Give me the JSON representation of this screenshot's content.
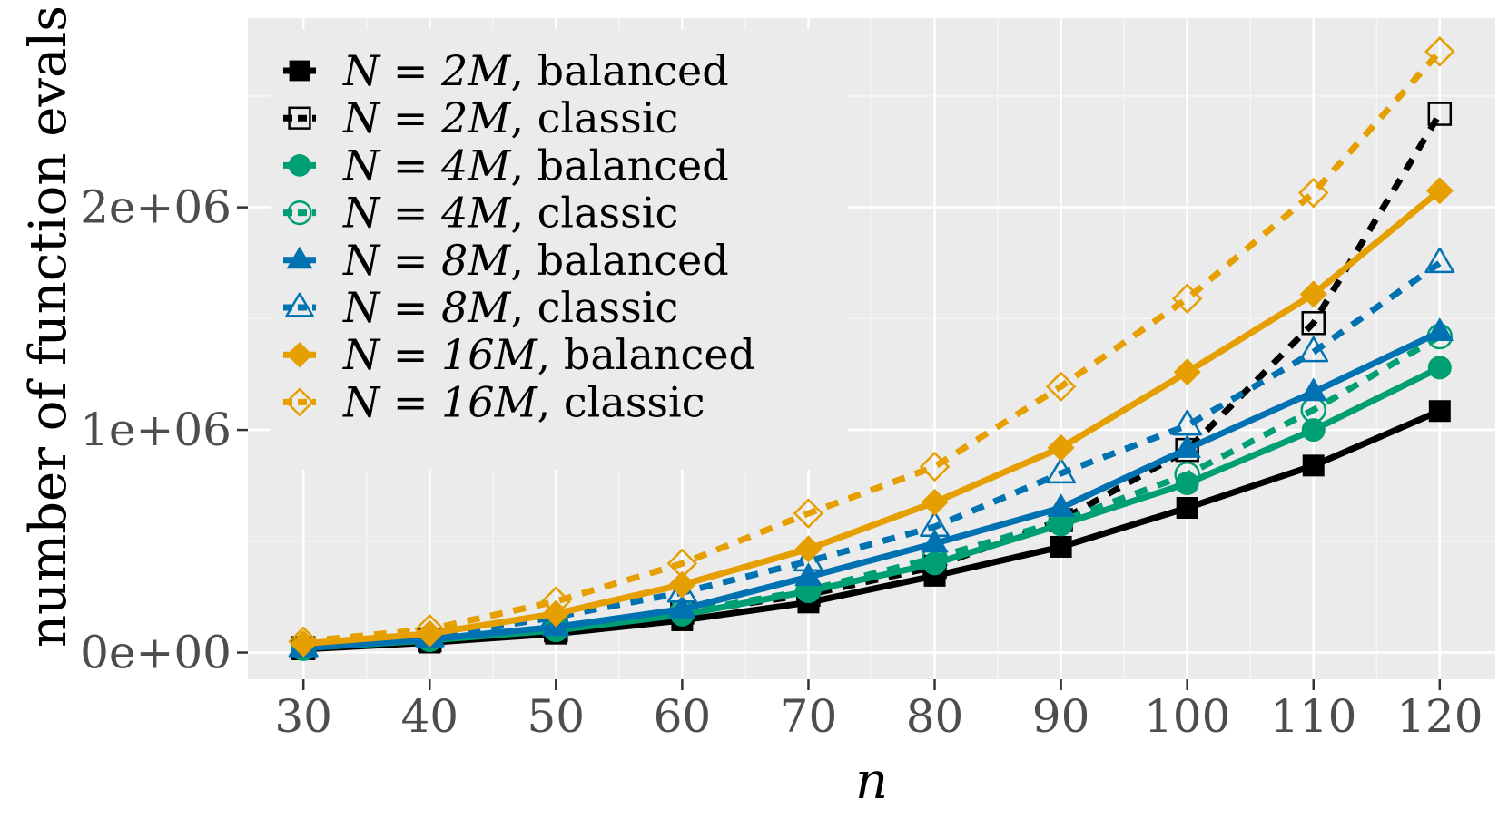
{
  "chart_data": {
    "type": "line",
    "title": "",
    "xlabel": "n",
    "ylabel": "number of function evals",
    "xlim": [
      25.6,
      124.4
    ],
    "ylim": [
      -120000,
      2850000
    ],
    "x": [
      30,
      40,
      50,
      60,
      70,
      80,
      90,
      100,
      110,
      120
    ],
    "xticks": [
      30,
      40,
      50,
      60,
      70,
      80,
      90,
      100,
      110,
      120
    ],
    "xtick_labels": [
      "30",
      "40",
      "50",
      "60",
      "70",
      "80",
      "90",
      "100",
      "110",
      "120"
    ],
    "yticks": [
      0,
      1000000,
      2000000
    ],
    "ytick_labels": [
      "0e+00",
      "1e+06",
      "2e+06"
    ],
    "yminor_ticks": [
      500000,
      1500000,
      2500000
    ],
    "grid": true,
    "legend_position": "top-left",
    "series": [
      {
        "name": "N = 2M, balanced",
        "legend_prefix": "N = 2M",
        "legend_suffix": ", balanced",
        "color": "#000000",
        "dash": "solid",
        "marker": "square",
        "filled": true,
        "values": [
          15000,
          45000,
          85000,
          145000,
          225000,
          345000,
          475000,
          650000,
          840000,
          1085000
        ]
      },
      {
        "name": "N = 2M, classic",
        "legend_prefix": "N = 2M",
        "legend_suffix": ", classic",
        "color": "#000000",
        "dash": "dashed",
        "marker": "square",
        "filled": false,
        "values": [
          20000,
          55000,
          100000,
          180000,
          260000,
          385000,
          595000,
          910000,
          1480000,
          2420000
        ]
      },
      {
        "name": "N = 4M, balanced",
        "legend_prefix": "N = 4M",
        "legend_suffix": ", balanced",
        "color": "#009E73",
        "dash": "solid",
        "marker": "circle",
        "filled": true,
        "values": [
          20000,
          55000,
          100000,
          170000,
          275000,
          400000,
          575000,
          760000,
          1000000,
          1280000
        ]
      },
      {
        "name": "N = 4M, classic",
        "legend_prefix": "N = 4M",
        "legend_suffix": ", classic",
        "color": "#009E73",
        "dash": "dashed",
        "marker": "circle",
        "filled": false,
        "values": [
          20000,
          60000,
          105000,
          180000,
          280000,
          425000,
          590000,
          800000,
          1090000,
          1420000
        ]
      },
      {
        "name": "N = 8M, balanced",
        "legend_prefix": "N = 8M",
        "legend_suffix": ", balanced",
        "color": "#0072B2",
        "dash": "solid",
        "marker": "triangle",
        "filled": true,
        "values": [
          20000,
          60000,
          115000,
          195000,
          340000,
          490000,
          650000,
          915000,
          1170000,
          1440000
        ]
      },
      {
        "name": "N = 8M, classic",
        "legend_prefix": "N = 8M",
        "legend_suffix": ", classic",
        "color": "#0072B2",
        "dash": "dashed",
        "marker": "triangle",
        "filled": false,
        "values": [
          25000,
          70000,
          160000,
          270000,
          410000,
          565000,
          805000,
          1020000,
          1350000,
          1750000
        ]
      },
      {
        "name": "N = 16M, balanced",
        "legend_prefix": "N = 16M",
        "legend_suffix": ", balanced",
        "color": "#E69F00",
        "dash": "solid",
        "marker": "diamond",
        "filled": true,
        "values": [
          40000,
          85000,
          175000,
          305000,
          465000,
          675000,
          920000,
          1260000,
          1610000,
          2075000
        ]
      },
      {
        "name": "N = 16M, classic",
        "legend_prefix": "N = 16M",
        "legend_suffix": ", classic",
        "color": "#E69F00",
        "dash": "dashed",
        "marker": "diamond",
        "filled": false,
        "values": [
          50000,
          105000,
          230000,
          400000,
          625000,
          835000,
          1195000,
          1590000,
          2065000,
          2700000
        ]
      }
    ]
  },
  "colors": {
    "panel_background": "#EBEBEB",
    "grid_major": "#FFFFFF",
    "grid_minor": "#F5F5F5",
    "axis_text": "#4D4D4D"
  }
}
